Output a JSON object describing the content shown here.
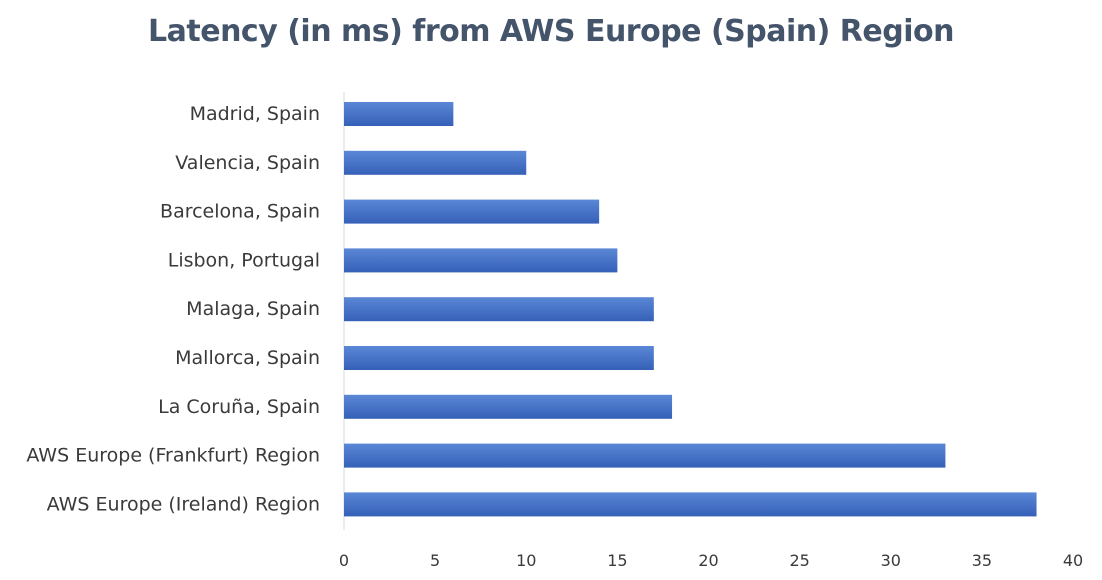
{
  "chart_data": {
    "type": "bar",
    "orientation": "horizontal",
    "title": "Latency (in ms) from AWS Europe (Spain) Region",
    "categories": [
      "Madrid, Spain",
      "Valencia, Spain",
      "Barcelona, Spain",
      "Lisbon, Portugal",
      "Malaga, Spain",
      "Mallorca, Spain",
      "La Coruña, Spain",
      "AWS Europe (Frankfurt) Region",
      "AWS Europe (Ireland) Region"
    ],
    "values": [
      6,
      10,
      14,
      15,
      17,
      17,
      18,
      33,
      38
    ],
    "xlim": [
      0,
      40
    ],
    "xticks": [
      "0",
      "5",
      "10",
      "15",
      "20",
      "25",
      "30",
      "35",
      "40"
    ],
    "grid": false,
    "legend": "none",
    "colors": {
      "bar_top": "#5b87d6",
      "bar_bottom": "#3560b8",
      "title": "#44546a",
      "axis": "#d9d9d9"
    }
  }
}
